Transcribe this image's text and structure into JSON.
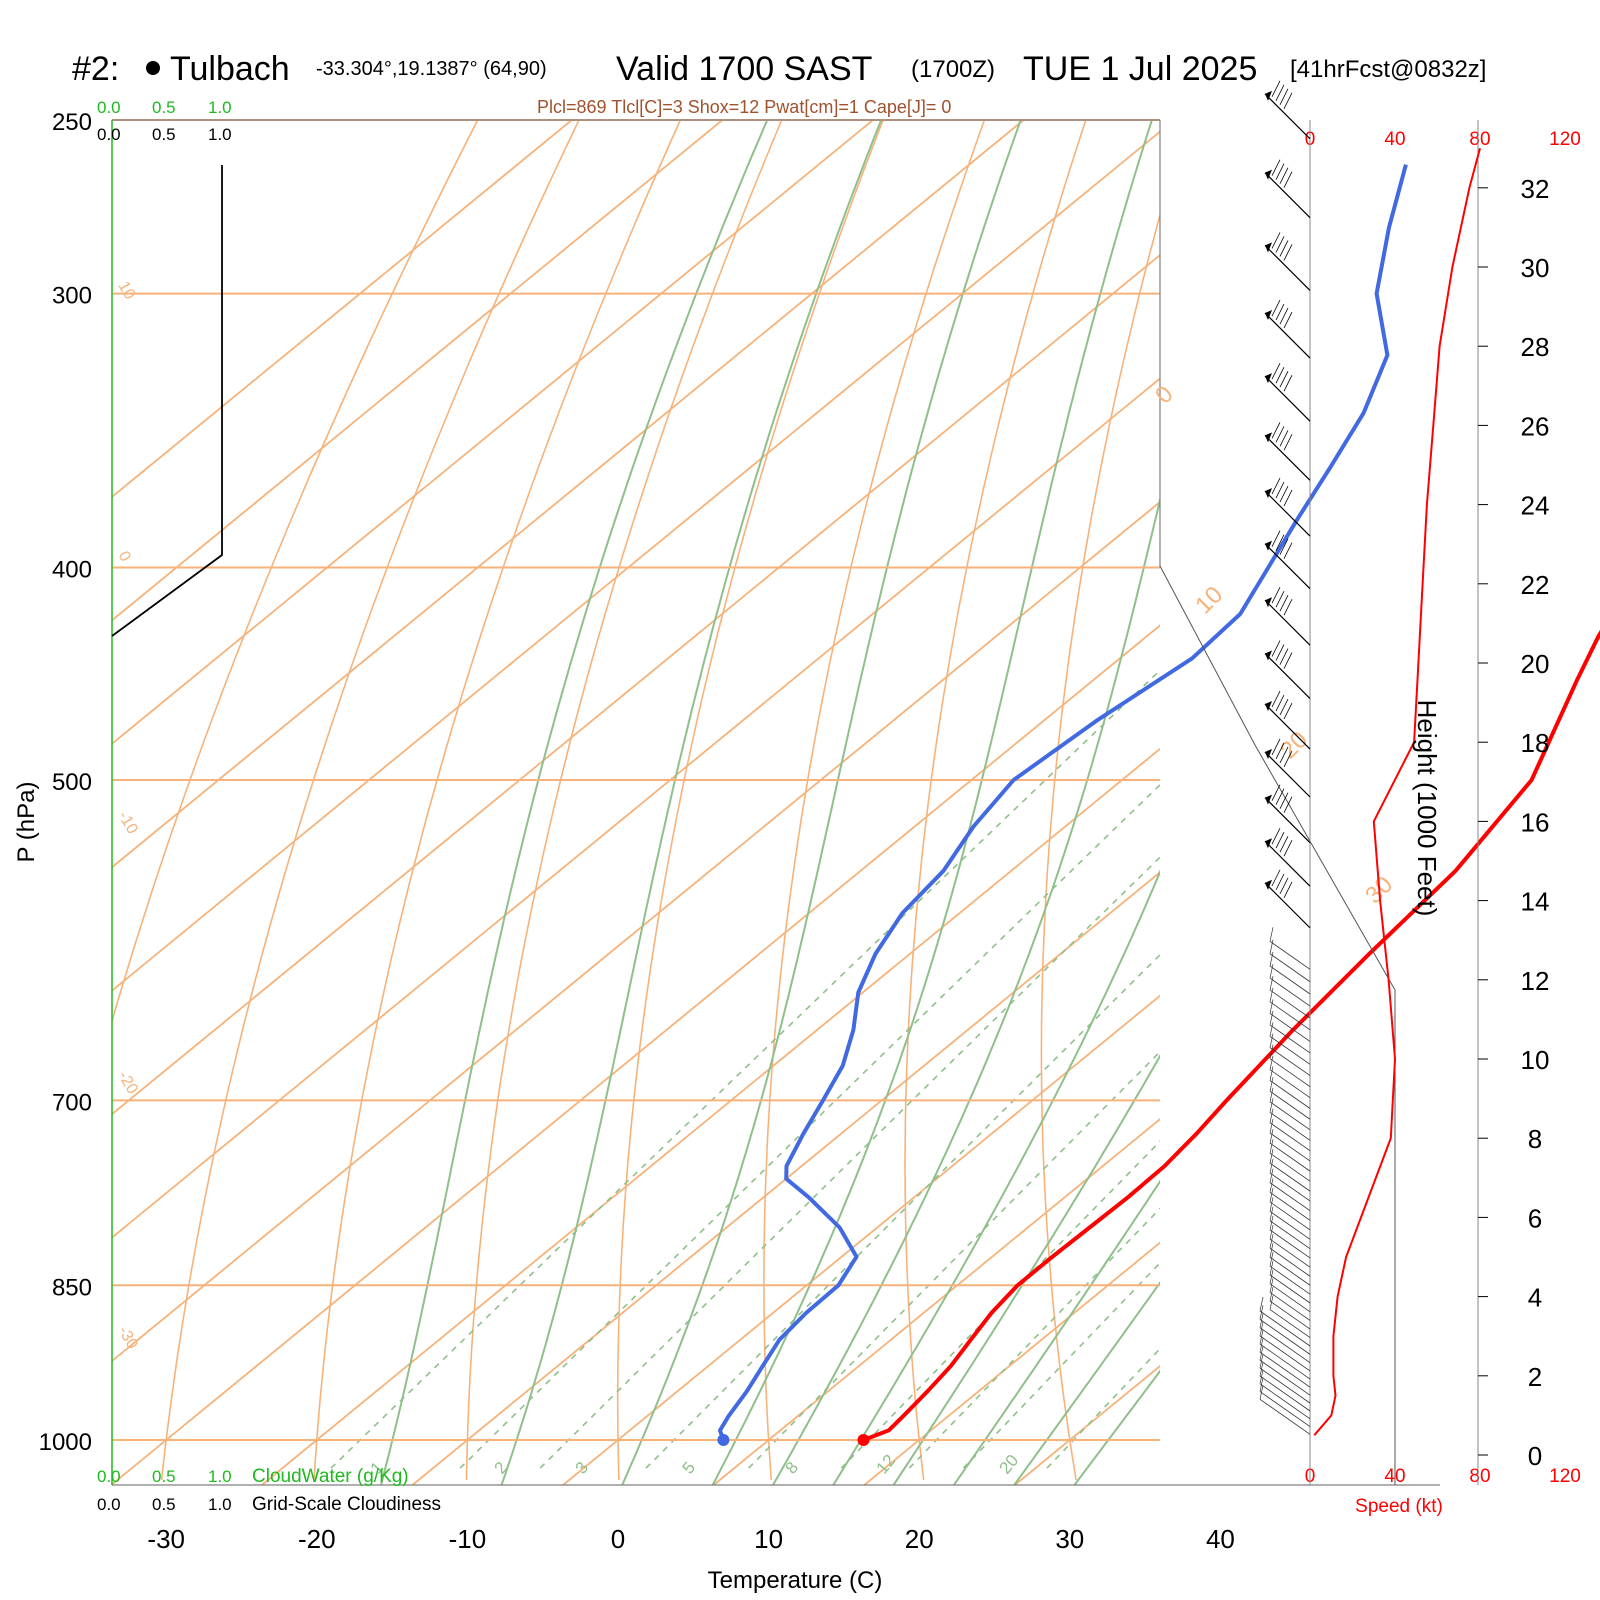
{
  "header": {
    "station_id": "#2:",
    "station_name": "Tulbach",
    "coords": "-33.304°,19.1387° (64,90)",
    "valid_label": "Valid 1700 SAST",
    "zulu": "(1700Z)",
    "date": "TUE 1 Jul 2025",
    "forecast": "[41hrFcst@0832z]",
    "indices": "Plcl=869 Tlcl[C]=3 Shox=12 Pwat[cm]=1 Cape[J]= 0"
  },
  "colors": {
    "isotherm": "#f7b27a",
    "dry_adiabat": "#f7b27a",
    "moist_adiabat": "#8fbf8a",
    "mixing_ratio": "#8fbf8a",
    "temperature": "#ff0000",
    "dewpoint": "#4169e1",
    "wind_speed": "#ff0000",
    "cloud_green": "#1fba1f",
    "frame": "#808080"
  },
  "left_panel": {
    "top_green_ticks": [
      "0.0",
      "0.5",
      "1.0"
    ],
    "top_black_ticks": [
      "0.0",
      "0.5",
      "1.0"
    ],
    "bottom_green_ticks": [
      "0.0",
      "0.5",
      "1.0"
    ],
    "bottom_black_ticks": [
      "0.0",
      "0.5",
      "1.0"
    ],
    "cloudwater_label": "CloudWater (g/Kg)",
    "cloudiness_label": "Grid-Scale Cloudiness"
  },
  "wind_panel": {
    "speed_ticks_top": [
      "0",
      "40",
      "80",
      "120"
    ],
    "speed_ticks_bottom": [
      "0",
      "40",
      "80",
      "120"
    ],
    "speed_label": "Speed (kt)",
    "height_label": "Height (1000 Feet)",
    "height_ticks": [
      "0",
      "2",
      "4",
      "6",
      "8",
      "10",
      "12",
      "14",
      "16",
      "18",
      "20",
      "22",
      "24",
      "26",
      "28",
      "30",
      "32"
    ]
  },
  "chart_data": {
    "type": "line",
    "subtype": "skew-T log-P diagram",
    "xlabel": "Temperature (C)",
    "ylabel": "P (hPa)",
    "x_ticks": [
      "-30",
      "-20",
      "-10",
      "0",
      "10",
      "20",
      "30",
      "40"
    ],
    "y_ticks": [
      "250",
      "300",
      "400",
      "500",
      "700",
      "850",
      "1000"
    ],
    "xlim": [
      -33.5,
      36
    ],
    "ylim": [
      1030,
      250
    ],
    "grid": true,
    "isotherm_labels": [
      "10",
      "0",
      "-10",
      "-20",
      "-30"
    ],
    "isotherm_labels_right": [
      "0",
      "10",
      "20",
      "30"
    ],
    "mixing_ratio_labels": [
      "1",
      "2",
      "3",
      "5",
      "8",
      "12",
      "20"
    ],
    "series": [
      {
        "name": "Temperature",
        "p": [
          1000,
          990,
          975,
          950,
          925,
          900,
          875,
          850,
          825,
          800,
          775,
          750,
          725,
          700,
          650,
          600,
          550,
          500,
          450,
          430,
          400,
          350,
          330,
          300,
          280,
          262
        ],
        "values": [
          16.3,
          17.2,
          17.0,
          16.6,
          16.1,
          15.3,
          14.5,
          14.0,
          14.0,
          14.1,
          14.2,
          14.1,
          13.6,
          12.9,
          11.6,
          10.5,
          9.5,
          7.2,
          2.1,
          0.0,
          -2.8,
          -9.2,
          -11.6,
          -15.3,
          -18.2,
          -20.5
        ]
      },
      {
        "name": "Dewpoint",
        "p": [
          1000,
          990,
          975,
          950,
          925,
          900,
          875,
          850,
          825,
          800,
          775,
          760,
          750,
          725,
          700,
          675,
          650,
          625,
          600,
          575,
          550,
          525,
          500,
          470,
          440,
          420,
          400,
          380,
          360,
          340,
          320,
          300,
          280,
          262
        ],
        "values": [
          7.0,
          6.0,
          5.4,
          4.6,
          3.6,
          2.6,
          2.2,
          2.1,
          1.0,
          -2.5,
          -7.0,
          -10.0,
          -11.0,
          -12.5,
          -13.9,
          -15.4,
          -17.6,
          -20.3,
          -22.3,
          -23.8,
          -24.5,
          -26.1,
          -27.2,
          -26.5,
          -25.2,
          -25.6,
          -27.5,
          -29.5,
          -31.5,
          -33.7,
          -36.8,
          -42.5,
          -47.0,
          -51.0
        ]
      }
    ],
    "wind_speed_profile": {
      "height_kft": [
        0.5,
        1,
        1.5,
        2,
        3,
        4,
        5,
        6,
        8,
        10,
        12,
        14,
        16,
        18,
        20,
        22,
        24,
        26,
        28,
        30,
        32,
        33
      ],
      "speed_kt": [
        2,
        10,
        12,
        11,
        11,
        13,
        17,
        24,
        38,
        40,
        37,
        33,
        30,
        49,
        51,
        53,
        55,
        58,
        61,
        67,
        75,
        80
      ]
    }
  }
}
